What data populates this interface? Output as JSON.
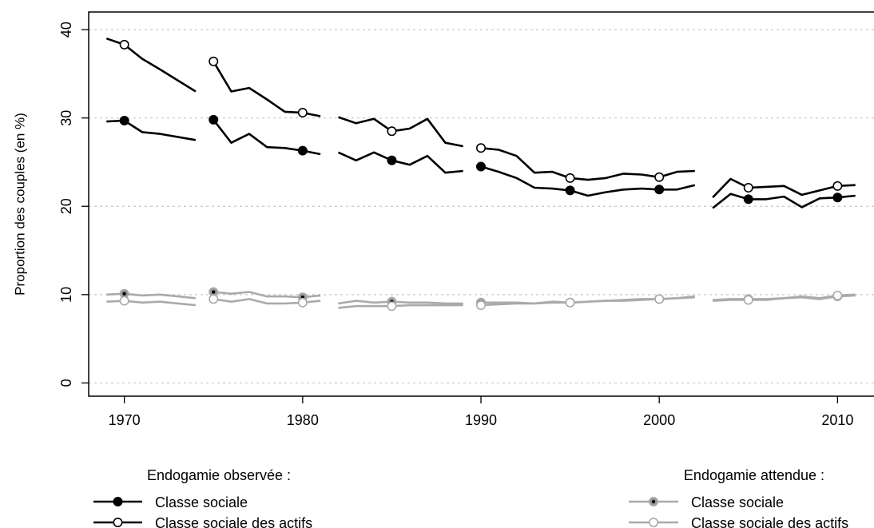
{
  "chart_data": {
    "type": "line",
    "title": "",
    "xlabel": "",
    "ylabel": "Proportion des couples (en %)",
    "xlim": [
      1968,
      2012
    ],
    "ylim": [
      -1.5,
      42
    ],
    "x_ticks": [
      1970,
      1980,
      1990,
      2000,
      2010
    ],
    "y_ticks": [
      0,
      10,
      20,
      30,
      40
    ],
    "grid": "horizontal-dotted",
    "legend_groups": [
      {
        "title": "Endogamie observée :",
        "placement": "bottom-left"
      },
      {
        "title": "Endogamie attendue :",
        "placement": "bottom-right"
      }
    ],
    "series": [
      {
        "name": "Classe sociale",
        "group": "Endogamie observée :",
        "color": "#000000",
        "marker": "filled",
        "segments": [
          [
            [
              1969,
              29.6
            ],
            [
              1970,
              29.7
            ],
            [
              1971,
              28.4
            ],
            [
              1972,
              28.2
            ],
            [
              1974,
              27.5
            ]
          ],
          [
            [
              1975,
              29.8
            ],
            [
              1976,
              27.2
            ],
            [
              1977,
              28.2
            ],
            [
              1978,
              26.7
            ],
            [
              1979,
              26.6
            ],
            [
              1980,
              26.3
            ],
            [
              1981,
              25.9
            ]
          ],
          [
            [
              1982,
              26.1
            ],
            [
              1983,
              25.2
            ],
            [
              1984,
              26.1
            ],
            [
              1985,
              25.2
            ],
            [
              1986,
              24.7
            ],
            [
              1987,
              25.7
            ],
            [
              1988,
              23.8
            ],
            [
              1989,
              24.0
            ]
          ],
          [
            [
              1990,
              24.5
            ],
            [
              1991,
              23.9
            ],
            [
              1992,
              23.2
            ],
            [
              1993,
              22.1
            ],
            [
              1994,
              22.0
            ],
            [
              1995,
              21.8
            ],
            [
              1996,
              21.2
            ],
            [
              1997,
              21.6
            ],
            [
              1998,
              21.9
            ],
            [
              1999,
              22.0
            ],
            [
              2000,
              21.9
            ],
            [
              2001,
              21.9
            ],
            [
              2002,
              22.4
            ]
          ],
          [
            [
              2003,
              19.8
            ],
            [
              2004,
              21.4
            ],
            [
              2005,
              20.8
            ],
            [
              2006,
              20.8
            ],
            [
              2007,
              21.1
            ],
            [
              2008,
              19.9
            ],
            [
              2009,
              20.9
            ],
            [
              2010,
              21.0
            ],
            [
              2011,
              21.2
            ]
          ]
        ],
        "marked_points": [
          [
            1970,
            29.7
          ],
          [
            1975,
            29.8
          ],
          [
            1980,
            26.3
          ],
          [
            1985,
            25.2
          ],
          [
            1990,
            24.5
          ],
          [
            1995,
            21.8
          ],
          [
            2000,
            21.9
          ],
          [
            2005,
            20.8
          ],
          [
            2010,
            21.0
          ]
        ]
      },
      {
        "name": "Classe sociale des actifs",
        "group": "Endogamie observée :",
        "color": "#000000",
        "marker": "open",
        "segments": [
          [
            [
              1969,
              39.0
            ],
            [
              1970,
              38.3
            ],
            [
              1971,
              36.7
            ],
            [
              1972,
              35.5
            ],
            [
              1974,
              33.0
            ]
          ],
          [
            [
              1975,
              36.4
            ],
            [
              1976,
              33.0
            ],
            [
              1977,
              33.4
            ],
            [
              1978,
              32.1
            ],
            [
              1979,
              30.7
            ],
            [
              1980,
              30.6
            ],
            [
              1981,
              30.2
            ]
          ],
          [
            [
              1982,
              30.1
            ],
            [
              1983,
              29.4
            ],
            [
              1984,
              29.9
            ],
            [
              1985,
              28.5
            ],
            [
              1986,
              28.8
            ],
            [
              1987,
              29.9
            ],
            [
              1988,
              27.2
            ],
            [
              1989,
              26.8
            ]
          ],
          [
            [
              1990,
              26.6
            ],
            [
              1991,
              26.4
            ],
            [
              1992,
              25.7
            ],
            [
              1993,
              23.8
            ],
            [
              1994,
              23.9
            ],
            [
              1995,
              23.2
            ],
            [
              1996,
              23.0
            ],
            [
              1997,
              23.2
            ],
            [
              1998,
              23.7
            ],
            [
              1999,
              23.6
            ],
            [
              2000,
              23.3
            ],
            [
              2001,
              23.9
            ],
            [
              2002,
              24.0
            ]
          ],
          [
            [
              2003,
              21.0
            ],
            [
              2004,
              23.1
            ],
            [
              2005,
              22.1
            ],
            [
              2006,
              22.2
            ],
            [
              2007,
              22.3
            ],
            [
              2008,
              21.3
            ],
            [
              2009,
              21.8
            ],
            [
              2010,
              22.3
            ],
            [
              2011,
              22.4
            ]
          ]
        ],
        "marked_points": [
          [
            1970,
            38.3
          ],
          [
            1975,
            36.4
          ],
          [
            1980,
            30.6
          ],
          [
            1985,
            28.5
          ],
          [
            1990,
            26.6
          ],
          [
            1995,
            23.2
          ],
          [
            2000,
            23.3
          ],
          [
            2005,
            22.1
          ],
          [
            2010,
            22.3
          ]
        ]
      },
      {
        "name": "Classe sociale",
        "group": "Endogamie attendue :",
        "color": "#aaaaaa",
        "marker": "gray-with-dot",
        "segments": [
          [
            [
              1969,
              10.0
            ],
            [
              1970,
              10.1
            ],
            [
              1971,
              9.9
            ],
            [
              1972,
              10.0
            ],
            [
              1974,
              9.6
            ]
          ],
          [
            [
              1975,
              10.3
            ],
            [
              1976,
              10.1
            ],
            [
              1977,
              10.3
            ],
            [
              1978,
              9.8
            ],
            [
              1979,
              9.8
            ],
            [
              1980,
              9.7
            ],
            [
              1981,
              9.9
            ]
          ],
          [
            [
              1982,
              9.0
            ],
            [
              1983,
              9.3
            ],
            [
              1984,
              9.1
            ],
            [
              1985,
              9.2
            ],
            [
              1986,
              9.1
            ],
            [
              1987,
              9.1
            ],
            [
              1988,
              9.0
            ],
            [
              1989,
              9.0
            ]
          ],
          [
            [
              1990,
              9.1
            ],
            [
              1991,
              9.1
            ],
            [
              1992,
              9.1
            ],
            [
              1993,
              9.0
            ],
            [
              1994,
              9.2
            ],
            [
              1995,
              9.1
            ],
            [
              1996,
              9.2
            ],
            [
              1997,
              9.3
            ],
            [
              1998,
              9.4
            ],
            [
              1999,
              9.5
            ],
            [
              2000,
              9.5
            ],
            [
              2001,
              9.6
            ],
            [
              2002,
              9.8
            ]
          ],
          [
            [
              2003,
              9.4
            ],
            [
              2004,
              9.5
            ],
            [
              2005,
              9.5
            ],
            [
              2006,
              9.5
            ],
            [
              2007,
              9.6
            ],
            [
              2008,
              9.7
            ],
            [
              2009,
              9.5
            ],
            [
              2010,
              9.8
            ],
            [
              2011,
              9.9
            ]
          ]
        ],
        "marked_points": [
          [
            1970,
            10.1
          ],
          [
            1975,
            10.3
          ],
          [
            1980,
            9.7
          ],
          [
            1985,
            9.2
          ],
          [
            1990,
            9.1
          ],
          [
            1995,
            9.1
          ],
          [
            2000,
            9.5
          ],
          [
            2005,
            9.5
          ],
          [
            2010,
            9.8
          ]
        ]
      },
      {
        "name": "Classe sociale des actifs",
        "group": "Endogamie attendue :",
        "color": "#aaaaaa",
        "marker": "open-gray",
        "segments": [
          [
            [
              1969,
              9.2
            ],
            [
              1970,
              9.3
            ],
            [
              1971,
              9.1
            ],
            [
              1972,
              9.2
            ],
            [
              1974,
              8.8
            ]
          ],
          [
            [
              1975,
              9.5
            ],
            [
              1976,
              9.2
            ],
            [
              1977,
              9.5
            ],
            [
              1978,
              9.0
            ],
            [
              1979,
              9.0
            ],
            [
              1980,
              9.1
            ],
            [
              1981,
              9.3
            ]
          ],
          [
            [
              1982,
              8.5
            ],
            [
              1983,
              8.7
            ],
            [
              1984,
              8.7
            ],
            [
              1985,
              8.7
            ],
            [
              1986,
              8.8
            ],
            [
              1987,
              8.8
            ],
            [
              1988,
              8.8
            ],
            [
              1989,
              8.8
            ]
          ],
          [
            [
              1990,
              8.8
            ],
            [
              1991,
              8.9
            ],
            [
              1992,
              9.0
            ],
            [
              1993,
              9.0
            ],
            [
              1994,
              9.1
            ],
            [
              1995,
              9.1
            ],
            [
              1996,
              9.2
            ],
            [
              1997,
              9.3
            ],
            [
              1998,
              9.3
            ],
            [
              1999,
              9.4
            ],
            [
              2000,
              9.5
            ],
            [
              2001,
              9.6
            ],
            [
              2002,
              9.7
            ]
          ],
          [
            [
              2003,
              9.3
            ],
            [
              2004,
              9.4
            ],
            [
              2005,
              9.4
            ],
            [
              2006,
              9.4
            ],
            [
              2007,
              9.6
            ],
            [
              2008,
              9.8
            ],
            [
              2009,
              9.6
            ],
            [
              2010,
              9.9
            ],
            [
              2011,
              10.0
            ]
          ]
        ],
        "marked_points": [
          [
            1970,
            9.3
          ],
          [
            1975,
            9.5
          ],
          [
            1980,
            9.1
          ],
          [
            1985,
            8.7
          ],
          [
            1990,
            8.8
          ],
          [
            1995,
            9.1
          ],
          [
            2000,
            9.5
          ],
          [
            2005,
            9.4
          ],
          [
            2010,
            9.9
          ]
        ]
      }
    ]
  }
}
